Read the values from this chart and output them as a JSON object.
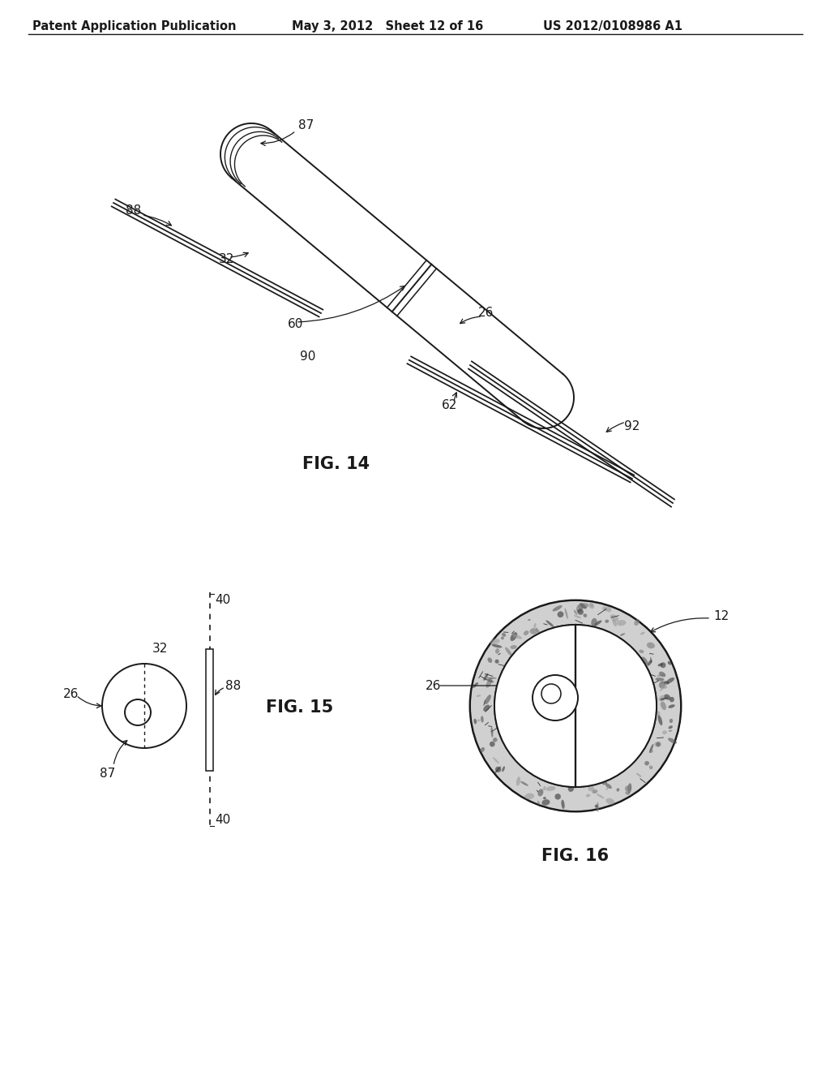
{
  "header_left": "Patent Application Publication",
  "header_mid": "May 3, 2012   Sheet 12 of 16",
  "header_right": "US 2012/0108986 A1",
  "fig14_label": "FIG. 14",
  "fig15_label": "FIG. 15",
  "fig16_label": "FIG. 16",
  "bg_color": "#ffffff",
  "line_color": "#1a1a1a",
  "line_width": 1.4,
  "header_fontsize": 10.5,
  "fig_label_fontsize": 15,
  "annotation_fontsize": 11
}
